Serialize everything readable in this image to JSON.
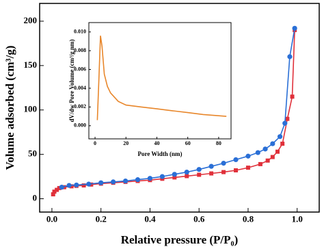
{
  "chart_data": [
    {
      "type": "line",
      "x_label": "Relative pressure (P/P₀)",
      "y_label": "Volume adsorbed (cm³/g)",
      "xlim": [
        -0.05,
        1.09
      ],
      "ylim": [
        -15,
        220
      ],
      "xticks": [
        {
          "value": 0,
          "label": "0.0"
        },
        0.2,
        0.4,
        0.6,
        0.8,
        {
          "value": 1,
          "label": "1.0"
        }
      ],
      "yticks": [
        0,
        50,
        100,
        150,
        200
      ],
      "series": [
        {
          "color": "#e0303a",
          "marker": "square",
          "x": [
            0.005,
            0.01,
            0.02,
            0.03,
            0.05,
            0.08,
            0.1,
            0.13,
            0.16,
            0.2,
            0.25,
            0.3,
            0.35,
            0.4,
            0.45,
            0.5,
            0.55,
            0.6,
            0.65,
            0.7,
            0.75,
            0.8,
            0.85,
            0.88,
            0.9,
            0.92,
            0.94,
            0.96,
            0.98,
            0.99
          ],
          "values": [
            5,
            8,
            10,
            12,
            13,
            14,
            14.5,
            15,
            16,
            17,
            18,
            19,
            20,
            21,
            22.5,
            24,
            25.5,
            27,
            28.5,
            30,
            32,
            35,
            39,
            43,
            47,
            53,
            62,
            90,
            115,
            190
          ]
        },
        {
          "color": "#2a6fd6",
          "marker": "circle",
          "x": [
            0.99,
            0.97,
            0.95,
            0.93,
            0.9,
            0.87,
            0.84,
            0.8,
            0.75,
            0.7,
            0.65,
            0.6,
            0.55,
            0.5,
            0.45,
            0.4,
            0.35,
            0.3,
            0.25,
            0.2,
            0.15,
            0.1,
            0.07,
            0.04
          ],
          "values": [
            192,
            160,
            85,
            70,
            62,
            56,
            52,
            48,
            44,
            40,
            36.5,
            33,
            30,
            27.5,
            25,
            23,
            21.5,
            20,
            19,
            18,
            16.5,
            15.5,
            15,
            13
          ]
        }
      ]
    },
    {
      "type": "line",
      "x_label": "Pore Width (nm)",
      "y_label": "dV/dw Pore Volume (cm³/g nm)",
      "xlim": [
        -4,
        88
      ],
      "ylim": [
        -0.0014,
        0.011
      ],
      "xticks": [
        0,
        20,
        40,
        60,
        80
      ],
      "yticks": [
        {
          "value": 0,
          "label": "0.000"
        },
        0.002,
        0.004,
        0.006,
        0.008,
        {
          "value": 0.01,
          "label": "0.010"
        }
      ],
      "series": [
        {
          "color": "#e8862a",
          "marker": "none",
          "x": [
            1.5,
            2.5,
            3.5,
            4.5,
            6,
            8,
            10,
            15,
            20,
            30,
            40,
            50,
            60,
            70,
            85
          ],
          "values": [
            0.0006,
            0.005,
            0.0096,
            0.0085,
            0.0055,
            0.0042,
            0.0035,
            0.0026,
            0.0022,
            0.002,
            0.0018,
            0.0016,
            0.0014,
            0.0012,
            0.001
          ]
        }
      ]
    }
  ]
}
